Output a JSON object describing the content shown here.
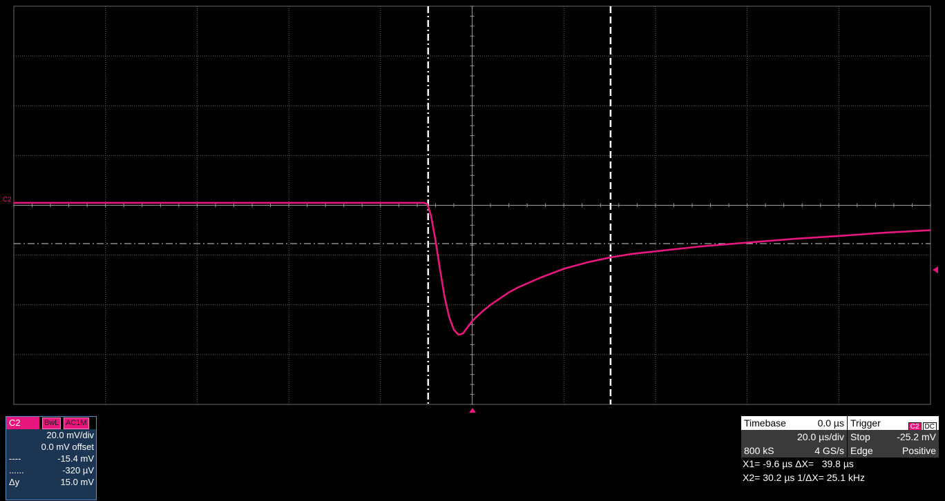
{
  "colors": {
    "trace": "#e8177e",
    "grid": "#6a6a6a",
    "cursor": "#ffffff",
    "background": "#000000"
  },
  "channel": {
    "name": "C2",
    "tags": [
      "BwL",
      "AC1M"
    ],
    "scale": "20.0 mV/div",
    "offset": "0.0 mV offset",
    "cursor1_symbol": "----",
    "cursor1_value": "-15.4 mV",
    "cursor2_symbol": "......",
    "cursor2_value": "-320 µV",
    "delta_label": "Δy",
    "delta_value": "15.0 mV",
    "trace_marker": "C2"
  },
  "timebase": {
    "label": "Timebase",
    "delay": "0.0 µs",
    "per_div": "20.0 µs/div",
    "samples": "800 kS",
    "rate": "4 GS/s"
  },
  "trigger": {
    "label": "Trigger",
    "source_tag": "C2",
    "coupling_tag": "DC",
    "mode": "Stop",
    "level": "-25.2 mV",
    "type": "Edge",
    "slope": "Positive"
  },
  "cursors": {
    "x1": "X1= -9.6 µs",
    "dx_label": "ΔX=",
    "dx": "39.8 µs",
    "x2": "X2= 30.2 µs",
    "inv_dx_label": "1/ΔX=",
    "inv_dx": "25.1 kHz"
  },
  "chart_data": {
    "type": "line",
    "x_unit": "µs",
    "y_unit": "mV",
    "xlim": [
      -100,
      100
    ],
    "ylim": [
      -80,
      80
    ],
    "x_divisions": 10,
    "y_divisions": 8,
    "grid": true,
    "cursor_x": [
      -9.6,
      30.2
    ],
    "cursor_y": -15.4,
    "series": [
      {
        "x": [
          -100,
          -60,
          -20,
          -10.5,
          -9.8,
          -9,
          -8,
          -7,
          -6,
          -5,
          -4,
          -3,
          -2,
          -1,
          0,
          2,
          4,
          6,
          8,
          10,
          15,
          20,
          25,
          30,
          35,
          40,
          50,
          60,
          70,
          80,
          90,
          100
        ],
        "y": [
          1.0,
          1.0,
          1.0,
          1.0,
          0.5,
          -4,
          -14,
          -26,
          -37,
          -45,
          -50,
          -52,
          -51.5,
          -49,
          -46.5,
          -43,
          -40,
          -37.5,
          -35,
          -33,
          -29,
          -25.5,
          -23,
          -21,
          -19.5,
          -18.5,
          -16.5,
          -15,
          -13.5,
          -12.3,
          -11,
          -10
        ]
      }
    ]
  }
}
